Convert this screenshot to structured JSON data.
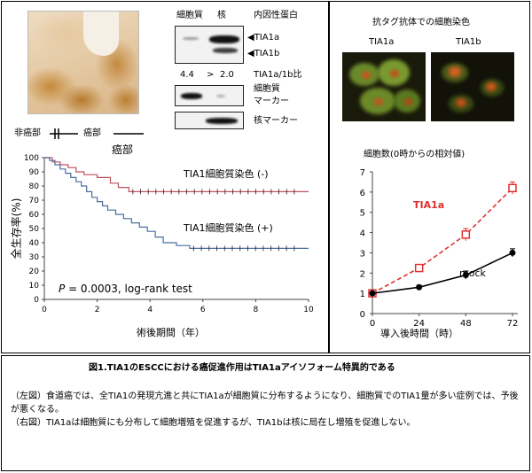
{
  "histology": {
    "non_cancer_label": "非癌部",
    "cancer_label": "癌部"
  },
  "western": {
    "col_cytoplasm": "細胞質",
    "col_nucleus": "核",
    "endogenous_label": "内因性蛋白",
    "band_tia1a": "◀TIA1a",
    "band_tia1b": "◀TIA1b",
    "ratio_left": "4.4",
    "ratio_gt": ">",
    "ratio_right": "2.0",
    "ratio_label": "TIA1a/1b比",
    "cyto_marker_line1": "細胞質",
    "cyto_marker_line2": "マーカー",
    "nuc_marker": "核マーカー"
  },
  "km": {
    "title": "癌部",
    "ylabel": "全生存率(%)",
    "xlabel": "術後期間（年）",
    "label_neg": "TIA1細胞質染色 (-)",
    "label_pos": "TIA1細胞質染色 (+)",
    "p_italic": "P",
    "p_rest": " = 0.0003, log-rank test",
    "xticks": [
      "0",
      "2",
      "4",
      "6",
      "8",
      "10"
    ],
    "yticks": [
      "0",
      "10",
      "20",
      "30",
      "40",
      "50",
      "60",
      "70",
      "80",
      "90",
      "100"
    ],
    "color_neg": "#c0505a",
    "color_pos": "#4a6fa0"
  },
  "staining": {
    "title": "抗タグ抗体での細胞染色",
    "label_a": "TIA1a",
    "label_b": "TIA1b"
  },
  "growth": {
    "title": "細胞数(0時からの相対値)",
    "xlabel": "導入後時間（時）",
    "label_tia1a": "TIA1a",
    "label_mock": "mock",
    "color_tia1a": "#e03030",
    "color_mock": "#000000",
    "xticks": [
      "0",
      "24",
      "48",
      "72"
    ],
    "yticks": [
      "0",
      "1",
      "2",
      "3",
      "4",
      "5",
      "6",
      "7"
    ]
  },
  "chart_data": [
    {
      "type": "line",
      "title": "癌部",
      "xlabel": "術後期間（年）",
      "ylabel": "全生存率(%)",
      "xlim": [
        0,
        10
      ],
      "ylim": [
        0,
        100
      ],
      "series": [
        {
          "name": "TIA1細胞質染色 (-)",
          "x": [
            0,
            0.3,
            0.6,
            0.9,
            1.2,
            1.5,
            2.0,
            2.5,
            2.8,
            3.2,
            10
          ],
          "y": [
            100,
            97,
            95,
            93,
            90,
            88,
            86,
            82,
            79,
            76,
            76
          ]
        },
        {
          "name": "TIA1細胞質染色 (+)",
          "x": [
            0,
            0.2,
            0.4,
            0.6,
            0.8,
            1.0,
            1.2,
            1.4,
            1.6,
            1.8,
            2.0,
            2.2,
            2.4,
            2.7,
            3.0,
            3.3,
            3.6,
            3.9,
            4.2,
            4.5,
            5.0,
            5.5,
            10
          ],
          "y": [
            100,
            98,
            95,
            92,
            89,
            86,
            83,
            80,
            76,
            72,
            69,
            66,
            63,
            60,
            57,
            54,
            51,
            48,
            44,
            40,
            38,
            36,
            36
          ]
        }
      ]
    },
    {
      "type": "line",
      "title": "細胞数(0時からの相対値)",
      "xlabel": "導入後時間（時）",
      "categories": [
        "0",
        "24",
        "48",
        "72"
      ],
      "ylim": [
        0,
        7
      ],
      "series": [
        {
          "name": "TIA1a",
          "values": [
            1.0,
            2.25,
            3.9,
            6.2
          ],
          "errors": [
            0.05,
            0.1,
            0.3,
            0.3
          ]
        },
        {
          "name": "mock",
          "values": [
            1.0,
            1.3,
            1.9,
            3.0
          ],
          "errors": [
            0.05,
            0.1,
            0.2,
            0.2
          ]
        }
      ]
    }
  ],
  "caption": {
    "title": "図1.TIA1のESCCにおける癌促進作用はTIA1aアイソフォーム特異的である",
    "para1": "（左図）食道癌では、全TIA1の発現亢進と共にTIA1aが細胞質に分布するようになり、細胞質でのTIA1量が多い症例では、予後が悪くなる。",
    "para2": "（右図）TIA1aは細胞質にも分布して細胞増殖を促進するが、TIA1bは核に局在し増殖を促進しない。"
  }
}
